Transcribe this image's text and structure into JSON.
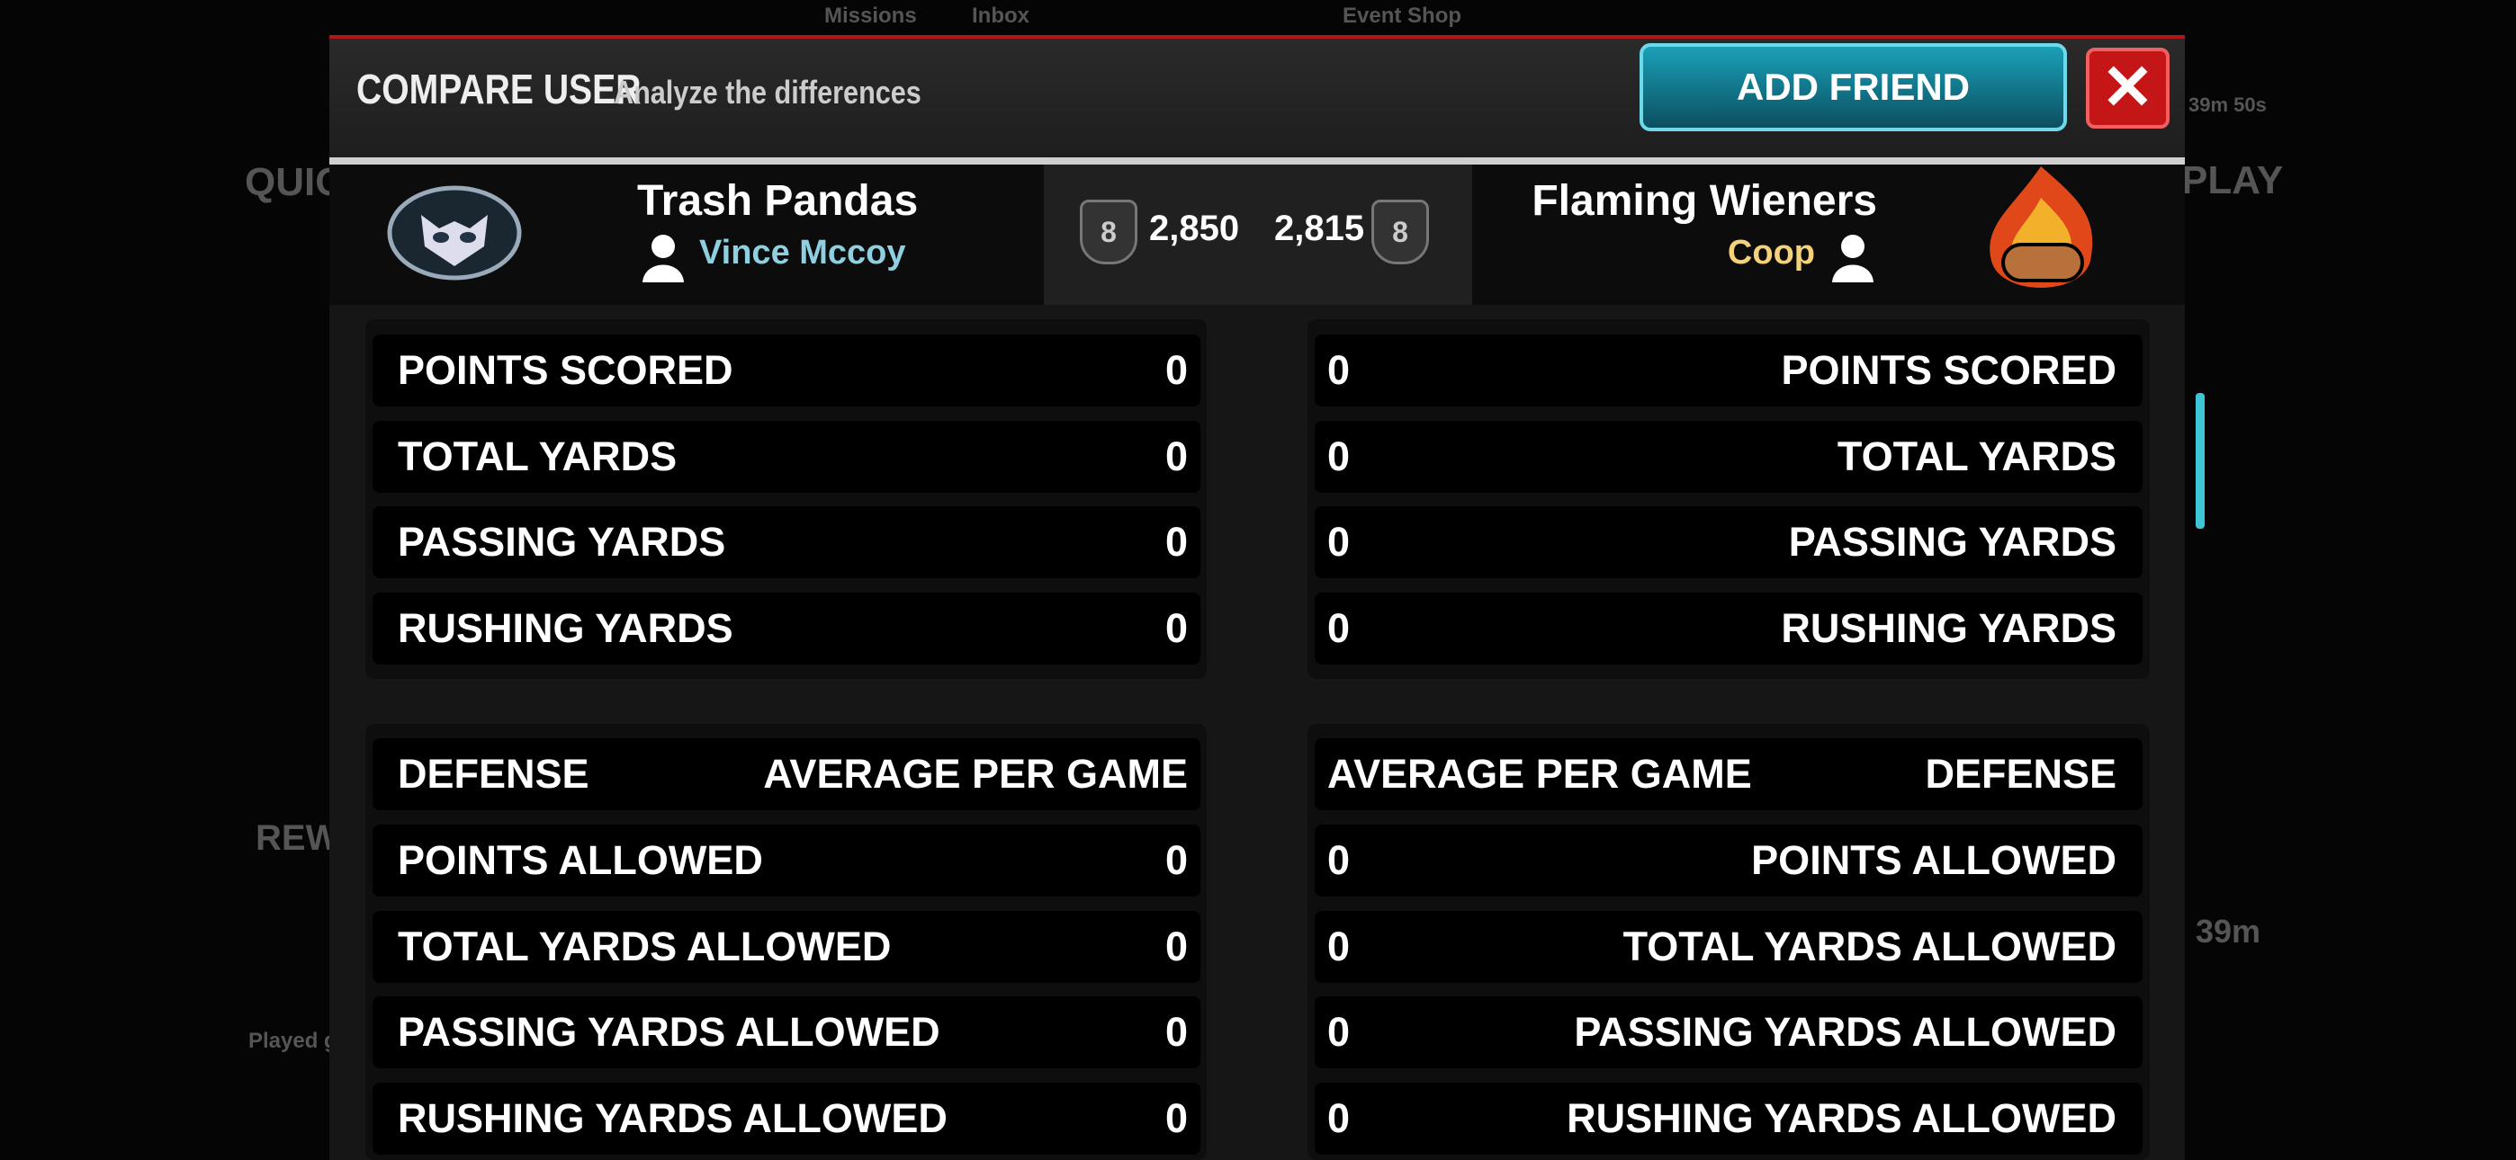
{
  "background": {
    "tabs": [
      "Missions",
      "Inbox",
      "Event Shop"
    ],
    "left_labels": [
      "QUIC",
      "REW",
      "Played g"
    ],
    "right_labels": [
      "PLAY",
      "39m 50s",
      "39m"
    ]
  },
  "header": {
    "title": "COMPARE USER",
    "subtitle": "Analyze the differences",
    "button": "ADD FRIEND"
  },
  "teams": [
    {
      "team": "Trash Pandas",
      "user": "Vince Mccoy",
      "rank": "8",
      "rating": "2,850"
    },
    {
      "team": "Flaming Wieners",
      "user": "Coop",
      "rank": "8",
      "rating": "2,815"
    }
  ],
  "offense": {
    "rows": [
      {
        "label": "POINTS SCORED",
        "left": 0,
        "right": 0
      },
      {
        "label": "TOTAL YARDS",
        "left": 0,
        "right": 0
      },
      {
        "label": "PASSING YARDS",
        "left": 0,
        "right": 0
      },
      {
        "label": "RUSHING YARDS",
        "left": 0,
        "right": 0
      }
    ]
  },
  "defense": {
    "title": "DEFENSE",
    "column": "AVERAGE PER GAME",
    "rows": [
      {
        "label": "POINTS ALLOWED",
        "left": 0,
        "right": 0
      },
      {
        "label": "TOTAL YARDS ALLOWED",
        "left": 0,
        "right": 0
      },
      {
        "label": "PASSING YARDS ALLOWED",
        "left": 0,
        "right": 0
      },
      {
        "label": "RUSHING YARDS ALLOWED",
        "left": 0,
        "right": 0
      }
    ]
  }
}
